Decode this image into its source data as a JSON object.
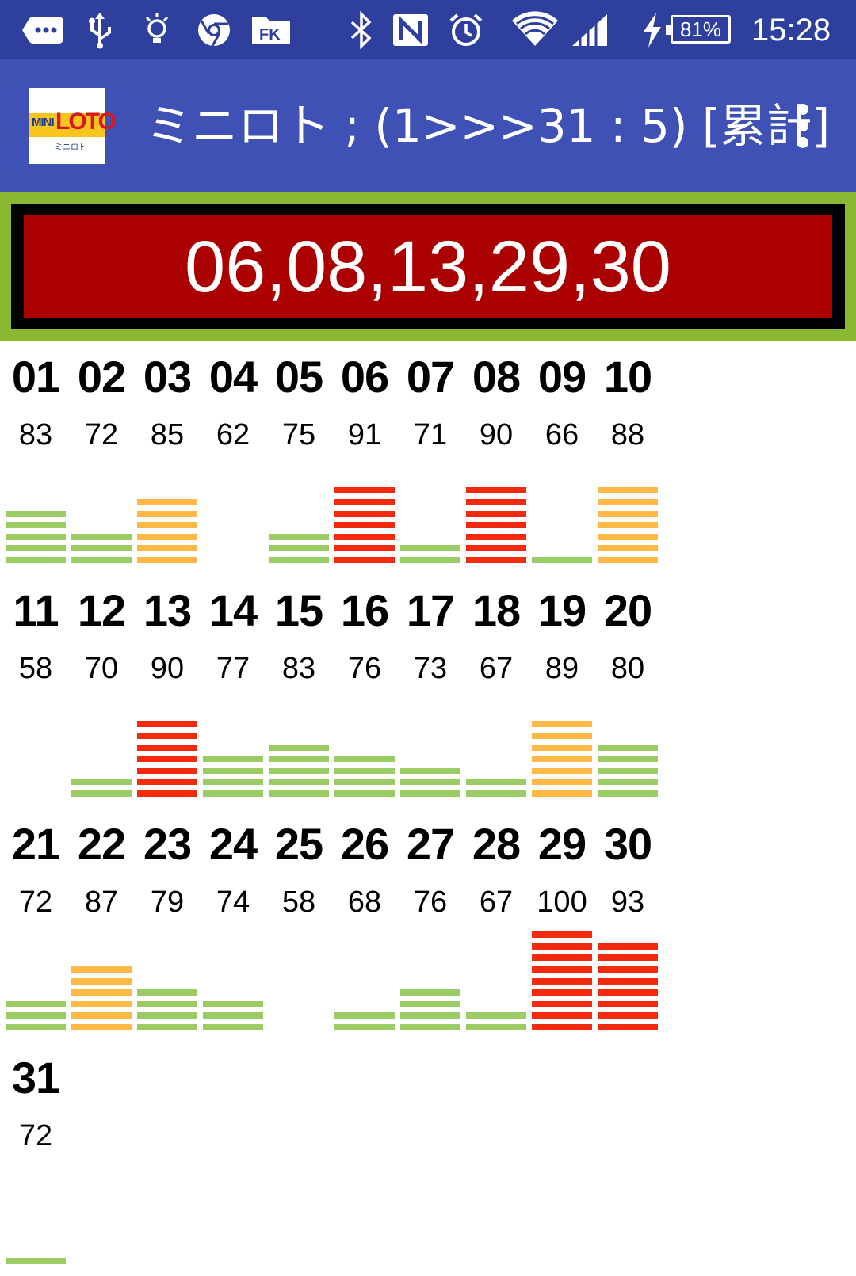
{
  "status_bar": {
    "icons": [
      "more-icon",
      "usb-icon",
      "bulb-icon",
      "chrome-icon",
      "folder-icon",
      "bluetooth-icon",
      "nfc-icon",
      "alarm-icon",
      "wifi-icon",
      "signal-icon",
      "charging-icon"
    ],
    "battery": "81%",
    "time": "15:28"
  },
  "app_bar": {
    "logo_text_mini": "MINI",
    "logo_text_loto": "LOTO",
    "logo_text_sub": "ミニロト",
    "title": "ミニロト ; (1>>>31 : 5) [累計]"
  },
  "result": {
    "numbers": "06,08,13,29,30",
    "colors": {
      "panel": "#8bb832",
      "frame": "#000000",
      "box": "#aa0000"
    }
  },
  "bar_colors": {
    "low": "#9bcb64",
    "mid": "#ffb846",
    "high": "#f42a0e"
  },
  "numbers": [
    {
      "label": "01",
      "count": "83",
      "level": 5,
      "tier": "low"
    },
    {
      "label": "02",
      "count": "72",
      "level": 3,
      "tier": "low"
    },
    {
      "label": "03",
      "count": "85",
      "level": 6,
      "tier": "mid"
    },
    {
      "label": "04",
      "count": "62",
      "level": 0,
      "tier": "low"
    },
    {
      "label": "05",
      "count": "75",
      "level": 3,
      "tier": "low"
    },
    {
      "label": "06",
      "count": "91",
      "level": 7,
      "tier": "high"
    },
    {
      "label": "07",
      "count": "71",
      "level": 2,
      "tier": "low"
    },
    {
      "label": "08",
      "count": "90",
      "level": 7,
      "tier": "high"
    },
    {
      "label": "09",
      "count": "66",
      "level": 1,
      "tier": "low"
    },
    {
      "label": "10",
      "count": "88",
      "level": 7,
      "tier": "mid"
    },
    {
      "label": "11",
      "count": "58",
      "level": 0,
      "tier": "low"
    },
    {
      "label": "12",
      "count": "70",
      "level": 2,
      "tier": "low"
    },
    {
      "label": "13",
      "count": "90",
      "level": 7,
      "tier": "high"
    },
    {
      "label": "14",
      "count": "77",
      "level": 4,
      "tier": "low"
    },
    {
      "label": "15",
      "count": "83",
      "level": 5,
      "tier": "low"
    },
    {
      "label": "16",
      "count": "76",
      "level": 4,
      "tier": "low"
    },
    {
      "label": "17",
      "count": "73",
      "level": 3,
      "tier": "low"
    },
    {
      "label": "18",
      "count": "67",
      "level": 2,
      "tier": "low"
    },
    {
      "label": "19",
      "count": "89",
      "level": 7,
      "tier": "mid"
    },
    {
      "label": "20",
      "count": "80",
      "level": 5,
      "tier": "low"
    },
    {
      "label": "21",
      "count": "72",
      "level": 3,
      "tier": "low"
    },
    {
      "label": "22",
      "count": "87",
      "level": 6,
      "tier": "mid"
    },
    {
      "label": "23",
      "count": "79",
      "level": 4,
      "tier": "low"
    },
    {
      "label": "24",
      "count": "74",
      "level": 3,
      "tier": "low"
    },
    {
      "label": "25",
      "count": "58",
      "level": 0,
      "tier": "low"
    },
    {
      "label": "26",
      "count": "68",
      "level": 2,
      "tier": "low"
    },
    {
      "label": "27",
      "count": "76",
      "level": 4,
      "tier": "low"
    },
    {
      "label": "28",
      "count": "67",
      "level": 2,
      "tier": "low"
    },
    {
      "label": "29",
      "count": "100",
      "level": 9,
      "tier": "high"
    },
    {
      "label": "30",
      "count": "93",
      "level": 8,
      "tier": "high"
    },
    {
      "label": "31",
      "count": "72",
      "level": 1,
      "tier": "low"
    }
  ]
}
